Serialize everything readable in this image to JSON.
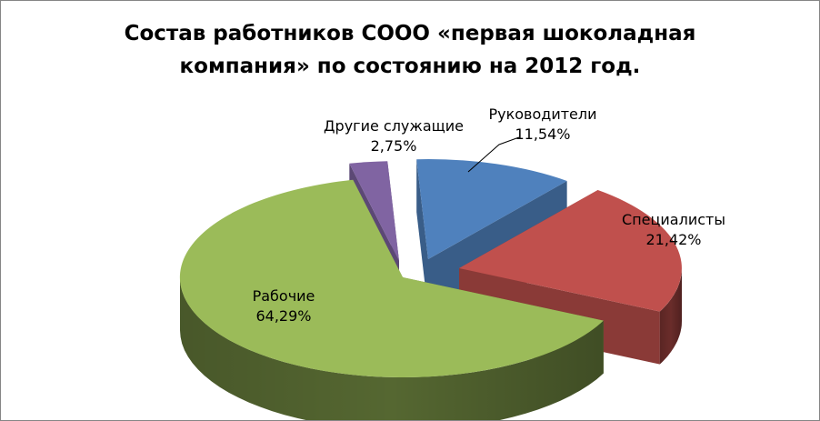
{
  "chart_data": {
    "type": "pie",
    "title_lines": [
      "Состав работников СООО «первая шоколадная",
      "компания» по состоянию на 2012 год."
    ],
    "style": "3d-exploded",
    "slices": [
      {
        "name": "Руководители",
        "value": 11.54,
        "label": "11,54%",
        "color": "#4F81BD"
      },
      {
        "name": "Специалисты",
        "value": 21.42,
        "label": "21,42%",
        "color": "#C0504D"
      },
      {
        "name": "Рабочие",
        "value": 64.29,
        "label": "64,29%",
        "color": "#9BBB59"
      },
      {
        "name": "Другие служащие",
        "value": 2.75,
        "label": "2,75%",
        "color": "#8064A2"
      }
    ]
  }
}
